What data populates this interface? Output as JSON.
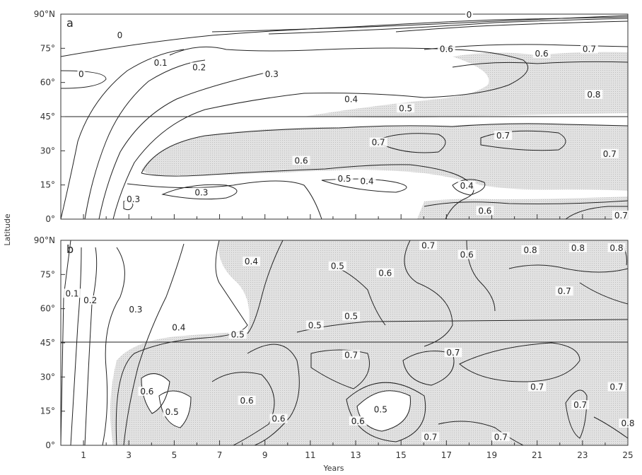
{
  "chart_data": [
    {
      "panel": "a",
      "type": "contour",
      "xlabel": "Years",
      "ylabel": "Latitude",
      "y_ticks": [
        "0°",
        "15°",
        "30°",
        "45°",
        "60°",
        "75°",
        "90°N"
      ],
      "x_ticks": [
        "1",
        "3",
        "5",
        "7",
        "9",
        "11",
        "13",
        "15",
        "17",
        "19",
        "21",
        "23",
        "25"
      ],
      "xlim": [
        0,
        25
      ],
      "ylim": [
        0,
        90
      ],
      "reference_line_lat": 45,
      "contour_levels": [
        0,
        0.1,
        0.2,
        0.3,
        0.4,
        0.5,
        0.6,
        0.7,
        0.8
      ],
      "shading": "stippled where value > 0.5",
      "labels": [
        {
          "text": "0",
          "x": 2.6,
          "y": 80
        },
        {
          "text": "0",
          "x": 0.9,
          "y": 63
        },
        {
          "text": "0.1",
          "x": 4.4,
          "y": 68
        },
        {
          "text": "0.2",
          "x": 6.1,
          "y": 66
        },
        {
          "text": "0.3",
          "x": 9.3,
          "y": 63
        },
        {
          "text": "0.4",
          "x": 12.8,
          "y": 52
        },
        {
          "text": "0.5",
          "x": 15.2,
          "y": 48
        },
        {
          "text": "0.6",
          "x": 17.0,
          "y": 74
        },
        {
          "text": "0.6",
          "x": 21.2,
          "y": 72
        },
        {
          "text": "0.7",
          "x": 23.3,
          "y": 74
        },
        {
          "text": "0.8",
          "x": 23.5,
          "y": 54
        },
        {
          "text": "0",
          "x": 18.0,
          "y": 89
        },
        {
          "text": "0.7",
          "x": 14.0,
          "y": 33
        },
        {
          "text": "0.7",
          "x": 19.5,
          "y": 36
        },
        {
          "text": "0.7",
          "x": 24.2,
          "y": 28
        },
        {
          "text": "0.6",
          "x": 10.6,
          "y": 25
        },
        {
          "text": "0.5",
          "x": 12.5,
          "y": 17
        },
        {
          "text": "0.4",
          "x": 13.5,
          "y": 16
        },
        {
          "text": "0.4",
          "x": 17.9,
          "y": 14
        },
        {
          "text": "0.3",
          "x": 6.2,
          "y": 11
        },
        {
          "text": "0.3",
          "x": 3.2,
          "y": 8
        },
        {
          "text": "0.6",
          "x": 18.7,
          "y": 3
        },
        {
          "text": "0.7",
          "x": 24.7,
          "y": 1
        }
      ]
    },
    {
      "panel": "b",
      "type": "contour",
      "xlabel": "Years",
      "ylabel": "Latitude",
      "y_ticks": [
        "0°",
        "15°",
        "30°",
        "45°",
        "60°",
        "75°",
        "90°N"
      ],
      "x_ticks": [
        "1",
        "3",
        "5",
        "7",
        "9",
        "11",
        "13",
        "15",
        "17",
        "19",
        "21",
        "23",
        "25"
      ],
      "xlim": [
        0,
        25
      ],
      "ylim": [
        0,
        90
      ],
      "reference_line_lat": 45,
      "contour_levels": [
        0.1,
        0.2,
        0.3,
        0.4,
        0.5,
        0.6,
        0.7,
        0.8
      ],
      "shading": "stippled where value > 0.5",
      "labels": [
        {
          "text": "0.1",
          "x": 0.5,
          "y": 66
        },
        {
          "text": "0.2",
          "x": 1.3,
          "y": 63
        },
        {
          "text": "0.3",
          "x": 3.3,
          "y": 59
        },
        {
          "text": "0.4",
          "x": 8.4,
          "y": 80
        },
        {
          "text": "0.4",
          "x": 5.2,
          "y": 51
        },
        {
          "text": "0.5",
          "x": 7.8,
          "y": 48
        },
        {
          "text": "0.5",
          "x": 12.2,
          "y": 78
        },
        {
          "text": "0.6",
          "x": 14.3,
          "y": 75
        },
        {
          "text": "0.5",
          "x": 11.2,
          "y": 52
        },
        {
          "text": "0.5",
          "x": 12.8,
          "y": 56
        },
        {
          "text": "0.7",
          "x": 16.2,
          "y": 87
        },
        {
          "text": "0.6",
          "x": 17.9,
          "y": 83
        },
        {
          "text": "0.8",
          "x": 20.7,
          "y": 85
        },
        {
          "text": "0.8",
          "x": 22.8,
          "y": 86
        },
        {
          "text": "0.8",
          "x": 24.5,
          "y": 86
        },
        {
          "text": "0.7",
          "x": 22.2,
          "y": 67
        },
        {
          "text": "0.7",
          "x": 12.8,
          "y": 39
        },
        {
          "text": "0.7",
          "x": 17.3,
          "y": 40
        },
        {
          "text": "0.7",
          "x": 21.0,
          "y": 25
        },
        {
          "text": "0.7",
          "x": 24.5,
          "y": 25
        },
        {
          "text": "0.7",
          "x": 22.9,
          "y": 17
        },
        {
          "text": "0.8",
          "x": 25.0,
          "y": 9
        },
        {
          "text": "0.6",
          "x": 3.8,
          "y": 23
        },
        {
          "text": "0.5",
          "x": 4.9,
          "y": 14
        },
        {
          "text": "0.6",
          "x": 8.2,
          "y": 19
        },
        {
          "text": "0.6",
          "x": 9.6,
          "y": 11
        },
        {
          "text": "0.6",
          "x": 13.1,
          "y": 10
        },
        {
          "text": "0.5",
          "x": 14.1,
          "y": 15
        },
        {
          "text": "0.7",
          "x": 16.3,
          "y": 3
        },
        {
          "text": "0.7",
          "x": 19.4,
          "y": 3
        }
      ]
    }
  ],
  "colors": {
    "stipple": "#dadada",
    "line": "#222222",
    "background": "#ffffff"
  }
}
